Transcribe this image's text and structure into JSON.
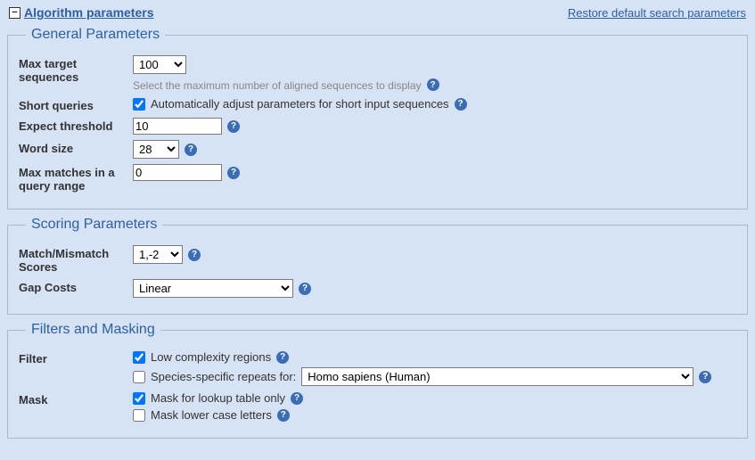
{
  "header": {
    "title": "Algorithm parameters",
    "collapse_glyph": "−",
    "restore": "Restore default search parameters"
  },
  "general": {
    "legend": "General Parameters",
    "max_target": {
      "label": "Max target sequences",
      "value": "100",
      "help": "Select the maximum number of aligned sequences to display"
    },
    "short_queries": {
      "label": "Short queries",
      "checkbox_label": "Automatically adjust parameters for short input sequences",
      "checked": true
    },
    "expect": {
      "label": "Expect threshold",
      "value": "10"
    },
    "word_size": {
      "label": "Word size",
      "value": "28"
    },
    "max_matches": {
      "label": "Max matches in a query range",
      "value": "0"
    }
  },
  "scoring": {
    "legend": "Scoring Parameters",
    "match_mismatch": {
      "label": "Match/Mismatch Scores",
      "value": "1,-2"
    },
    "gap_costs": {
      "label": "Gap Costs",
      "value": "Linear"
    }
  },
  "filters": {
    "legend": "Filters and Masking",
    "filter": {
      "label": "Filter",
      "low_complexity": {
        "label": "Low complexity regions",
        "checked": true
      },
      "species_repeats": {
        "label": "Species-specific repeats for:",
        "checked": false,
        "value": "Homo sapiens (Human)"
      }
    },
    "mask": {
      "label": "Mask",
      "lookup": {
        "label": "Mask for lookup table only",
        "checked": true
      },
      "lowercase": {
        "label": "Mask lower case letters",
        "checked": false
      }
    }
  }
}
